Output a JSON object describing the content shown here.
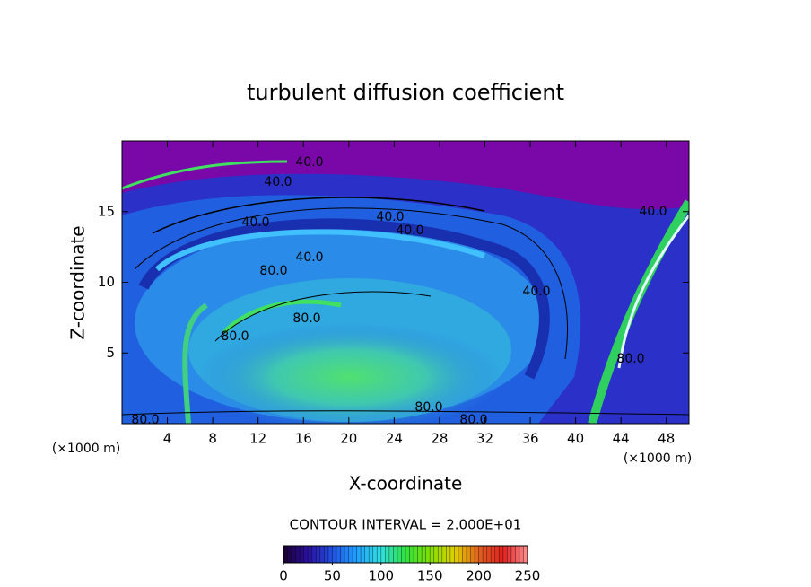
{
  "chart_data": {
    "type": "contour",
    "title": "turbulent diffusion coefficient",
    "x_label": "X-coordinate",
    "y_label": "Z-coordinate",
    "x_units": "(×1000 m)",
    "z_units": "(×1000 m)",
    "xlim": [
      0,
      50
    ],
    "xticks": [
      4,
      8,
      12,
      16,
      20,
      24,
      28,
      32,
      36,
      40,
      44,
      48
    ],
    "ylim": [
      0,
      20
    ],
    "yticks": [
      5,
      10,
      15
    ],
    "contour_interval": "CONTOUR INTERVAL = 2.000E+01",
    "contour_labels": [
      "40.0",
      "40.0",
      "40.0",
      "40.0",
      "40.0",
      "40.0",
      "40.0",
      "40.0",
      "80.0",
      "80.0",
      "80.0",
      "80.0",
      "80.0",
      "80.0",
      "80.0"
    ],
    "colormap": [
      "#1a0030",
      "#2a10a0",
      "#2050e0",
      "#20a0ff",
      "#30e0e0",
      "#30e040",
      "#80e000",
      "#e0d000",
      "#e06020",
      "#e02020",
      "#ff9090"
    ],
    "colorbar": {
      "lim": [
        0,
        250
      ],
      "ticks": [
        0,
        50,
        100,
        150,
        200,
        250
      ]
    }
  }
}
